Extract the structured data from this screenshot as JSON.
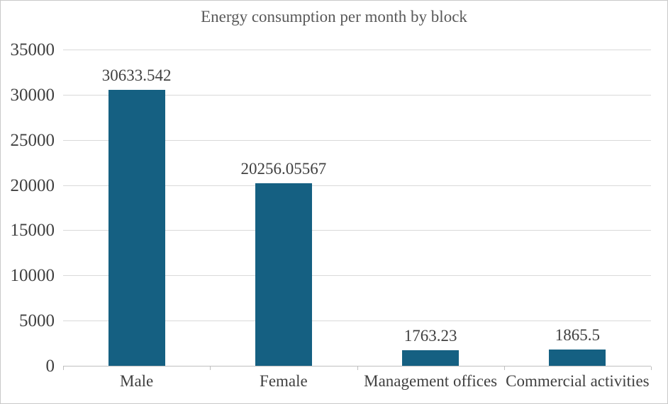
{
  "chart_data": {
    "type": "bar",
    "title": "Energy consumption per month by block",
    "categories": [
      "Male",
      "Female",
      "Management offices",
      "Commercial activities"
    ],
    "series": [
      {
        "name": "Energy consumption per month",
        "values": [
          30633.542,
          20256.05567,
          1763.23,
          1865.5
        ]
      }
    ],
    "data_labels": [
      "30633.542",
      "20256.05567",
      "1763.23",
      "1865.5"
    ],
    "xlabel": "",
    "ylabel": "",
    "y_axis": {
      "min": 0,
      "max": 35000,
      "tick_interval": 5000,
      "ticks": [
        0,
        5000,
        10000,
        15000,
        20000,
        25000,
        30000,
        35000
      ],
      "tick_labels": [
        "0",
        "5000",
        "10000",
        "15000",
        "20000",
        "25000",
        "30000",
        "35000"
      ]
    },
    "grid": "horizontal",
    "legend": "none",
    "colors": {
      "bar": "#156082",
      "gridline": "#D9D9D9",
      "axis_line": "#BFBFBF",
      "title_text": "#595959",
      "axis_text": "#404040",
      "data_label_text": "#404040",
      "background": "#FFFFFF",
      "chart_border": "#C9C9C9"
    }
  }
}
